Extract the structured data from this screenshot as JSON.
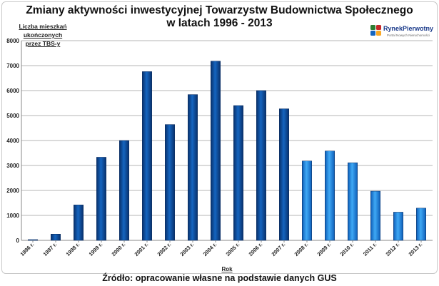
{
  "header": {
    "title_line1": "Zmiany aktywności inwestycyjnej Towarzystw Budownictwa Społecznego",
    "title_line2": "w latach 1996 - 2013"
  },
  "logo": {
    "name": "RynekPierwotny",
    "subtitle": "Portal Nowych Nieruchomości",
    "colors": [
      "#2e7d32",
      "#c62828",
      "#1565c0",
      "#f9a825"
    ]
  },
  "footer": {
    "source": "Źródło: opracowanie własne na podstawie danych GUS"
  },
  "chart_data": {
    "type": "bar",
    "title": "Zmiany aktywności inwestycyjnej Towarzystw Budownictwa Społecznego w latach 1996 - 2013",
    "ylabel_line1": "Liczba mieszkań ukończonych",
    "ylabel_line2": "przez TBS-y",
    "xlabel": "Rok",
    "categories": [
      "1996 r.",
      "1997 r.",
      "1998 r.",
      "1999 r.",
      "2000 r.",
      "2001 r.",
      "2002 r.",
      "2003 r.",
      "2004 r.",
      "2005 r.",
      "2006 r.",
      "2007 r.",
      "2008 r.",
      "2009 r.",
      "2010 r.",
      "2011 r.",
      "2012 r.",
      "2013 r."
    ],
    "values": [
      30,
      250,
      1420,
      3330,
      4000,
      6760,
      4640,
      5840,
      7180,
      5400,
      6000,
      5270,
      3180,
      3580,
      3110,
      1970,
      1130,
      1290
    ],
    "ylim": [
      0,
      8000
    ],
    "yticks": [
      0,
      1000,
      2000,
      3000,
      4000,
      5000,
      6000,
      7000,
      8000
    ],
    "grid": true,
    "legend": "none",
    "colors": {
      "dark": [
        "#08306b",
        "#1565c0",
        "#08306b"
      ],
      "light": [
        "#0d5db8",
        "#3fa9f5",
        "#0d5db8"
      ],
      "dark_until_index": 12
    }
  }
}
